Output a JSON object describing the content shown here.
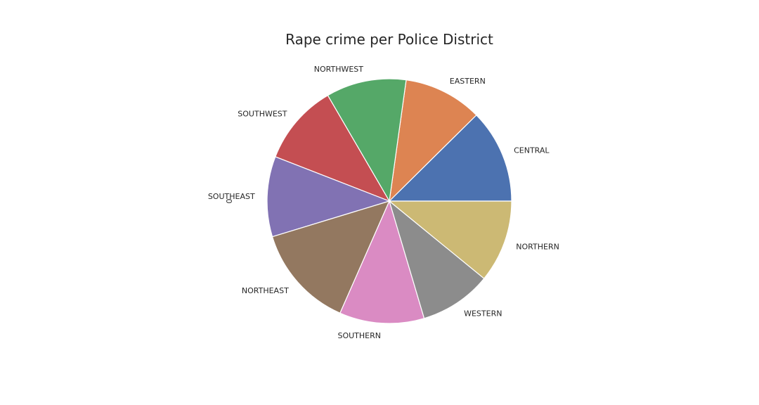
{
  "chart_data": {
    "type": "pie",
    "title": "Rape crime per Police District",
    "ylabel": "0",
    "categories": [
      "CENTRAL",
      "EASTERN",
      "NORTHWEST",
      "SOUTHWEST",
      "SOUTHEAST",
      "NORTHEAST",
      "SOUTHERN",
      "WESTERN",
      "NORTHERN"
    ],
    "values": [
      12.4,
      10.4,
      10.6,
      10.7,
      10.6,
      13.7,
      11.2,
      9.5,
      10.9
    ],
    "colors": [
      "#4c72b0",
      "#dd8452",
      "#55a868",
      "#c44e52",
      "#8172b3",
      "#937860",
      "#da8bc3",
      "#8c8c8c",
      "#ccb974"
    ],
    "start_angle_deg": 0,
    "direction": "counterclockwise",
    "legend": "none",
    "grid": false
  }
}
